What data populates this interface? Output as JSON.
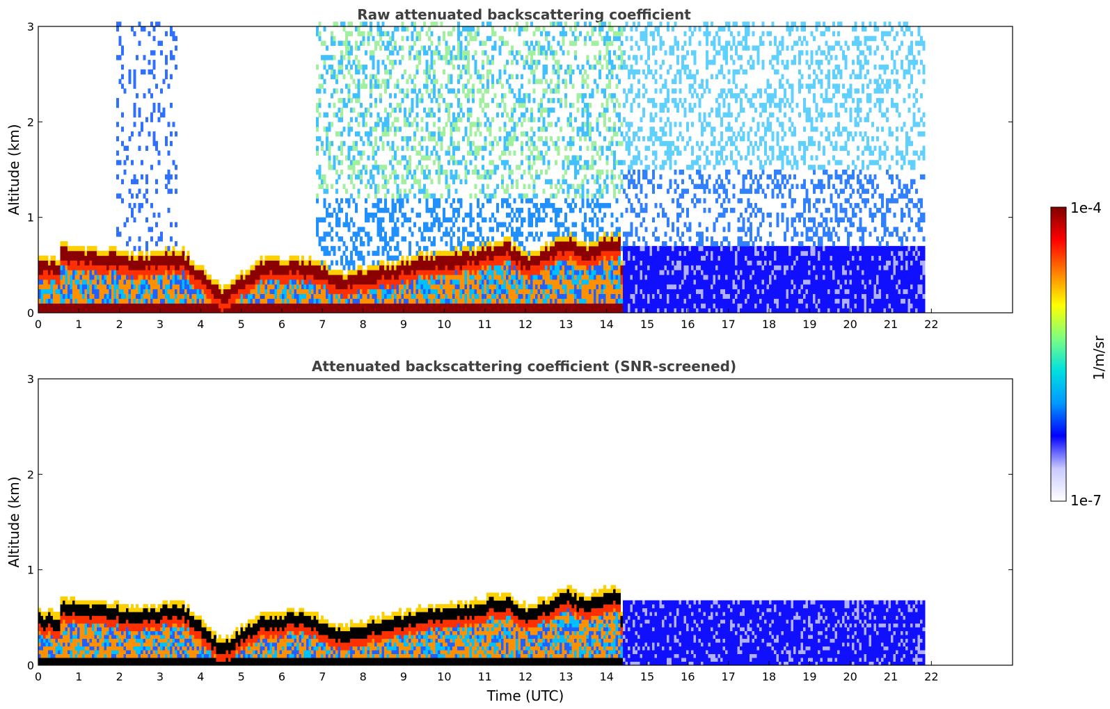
{
  "chart_data": [
    {
      "type": "heatmap",
      "title": "Raw attenuated backscattering coefficient",
      "ylabel": "Altitude (km)",
      "xlabel": "",
      "x_ticks": [
        "0",
        "1",
        "2",
        "3",
        "4",
        "5",
        "6",
        "7",
        "8",
        "9",
        "10",
        "11",
        "12",
        "13",
        "14",
        "15",
        "16",
        "17",
        "18",
        "19",
        "20",
        "21",
        "22"
      ],
      "y_ticks": [
        "0",
        "1",
        "2",
        "3"
      ],
      "xlim": [
        0,
        24
      ],
      "ylim": [
        0,
        3
      ],
      "data_end_time": 21.8,
      "layer_top_km": [
        {
          "t": 0.5,
          "z": 0.65
        },
        {
          "t": 1.5,
          "z": 0.6
        },
        {
          "t": 2.5,
          "z": 0.55
        },
        {
          "t": 3.5,
          "z": 0.6
        },
        {
          "t": 4.5,
          "z": 0.2
        },
        {
          "t": 5.5,
          "z": 0.5
        },
        {
          "t": 6.5,
          "z": 0.5
        },
        {
          "t": 7.5,
          "z": 0.35
        },
        {
          "t": 8.5,
          "z": 0.45
        },
        {
          "t": 9.5,
          "z": 0.55
        },
        {
          "t": 10.5,
          "z": 0.6
        },
        {
          "t": 11.5,
          "z": 0.7
        },
        {
          "t": 12.0,
          "z": 0.55
        },
        {
          "t": 12.5,
          "z": 0.65
        },
        {
          "t": 13.0,
          "z": 0.75
        },
        {
          "t": 13.5,
          "z": 0.65
        },
        {
          "t": 14.0,
          "z": 0.75
        },
        {
          "t": 14.3,
          "z": 0.75
        }
      ]
    },
    {
      "type": "heatmap",
      "title": "Attenuated backscattering coefficient (SNR-screened)",
      "ylabel": "Altitude (km)",
      "xlabel": "Time (UTC)",
      "x_ticks": [
        "0",
        "1",
        "2",
        "3",
        "4",
        "5",
        "6",
        "7",
        "8",
        "9",
        "10",
        "11",
        "12",
        "13",
        "14",
        "15",
        "16",
        "17",
        "18",
        "19",
        "20",
        "21",
        "22"
      ],
      "y_ticks": [
        "0",
        "1",
        "2",
        "3"
      ],
      "xlim": [
        0,
        24
      ],
      "ylim": [
        0,
        3
      ],
      "data_end_time": 21.8
    }
  ],
  "colorbar": {
    "label": "1/m/sr",
    "max_label": "1e-4",
    "min_label": "1e-7",
    "scale": "log",
    "range": [
      1e-07,
      0.0001
    ],
    "colormap": [
      "#ffffff",
      "#c9c9ff",
      "#0000ff",
      "#0099ff",
      "#00e0e0",
      "#7fff7f",
      "#ffff00",
      "#ff8000",
      "#ff0000",
      "#7f0000"
    ]
  }
}
